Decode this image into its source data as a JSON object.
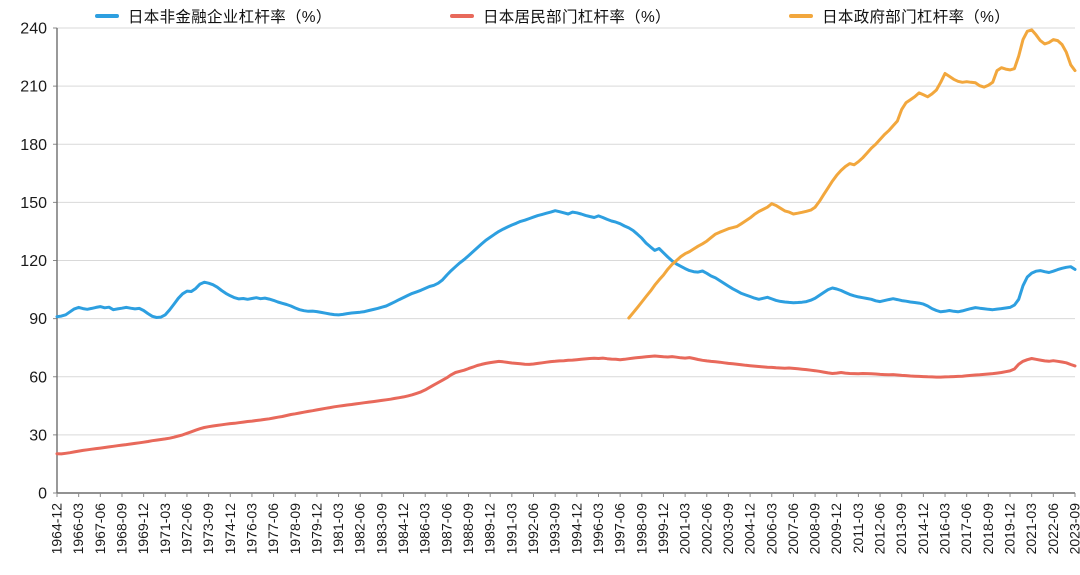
{
  "chart_data": {
    "type": "line",
    "title": "",
    "legend_position": "top",
    "grid": "horizontal",
    "ylim": [
      0,
      240
    ],
    "y_ticks": [
      0,
      30,
      60,
      90,
      120,
      150,
      180,
      210,
      240
    ],
    "x_total_points": 236,
    "x_label_every": 5,
    "x_tick_labels": [
      "1964-12",
      "1966-03",
      "1967-06",
      "1968-09",
      "1969-12",
      "1971-03",
      "1972-06",
      "1973-09",
      "1974-12",
      "1976-03",
      "1977-06",
      "1978-09",
      "1979-12",
      "1981-03",
      "1982-06",
      "1983-09",
      "1984-12",
      "1986-03",
      "1987-06",
      "1988-09",
      "1989-12",
      "1991-03",
      "1992-06",
      "1993-09",
      "1994-12",
      "1996-03",
      "1997-06",
      "1998-09",
      "1999-12",
      "2001-03",
      "2002-06",
      "2003-09",
      "2004-12",
      "2006-03",
      "2007-06",
      "2008-09",
      "2009-12",
      "2011-03",
      "2012-06",
      "2013-09",
      "2014-12",
      "2016-03",
      "2017-06",
      "2018-09",
      "2019-12",
      "2021-03",
      "2022-06",
      "2023-09"
    ],
    "colors": {
      "grid": "#d9d9d9",
      "axis": "#6e6e6e",
      "tick": "#8a8a8a",
      "text": "#1a1a1a"
    },
    "series": [
      {
        "name": "日本非金融企业杠杆率（%）",
        "color": "#2D9FE0",
        "start_index": 0,
        "values": [
          91.0,
          91.3,
          92.0,
          93.5,
          95.0,
          95.8,
          95.2,
          94.8,
          95.3,
          95.8,
          96.2,
          95.6,
          95.9,
          94.6,
          95.0,
          95.4,
          95.8,
          95.4,
          95.0,
          95.3,
          94.2,
          92.6,
          91.2,
          90.6,
          90.8,
          92.0,
          94.5,
          97.5,
          100.5,
          102.8,
          104.2,
          104.0,
          105.5,
          107.8,
          108.8,
          108.3,
          107.5,
          106.2,
          104.5,
          103.0,
          101.8,
          100.8,
          100.2,
          100.4,
          100.0,
          100.4,
          100.8,
          100.3,
          100.6,
          100.1,
          99.4,
          98.6,
          97.9,
          97.3,
          96.5,
          95.5,
          94.6,
          94.1,
          93.8,
          93.9,
          93.6,
          93.2,
          92.8,
          92.4,
          92.1,
          91.9,
          92.2,
          92.6,
          92.9,
          93.1,
          93.3,
          93.6,
          94.2,
          94.7,
          95.3,
          95.9,
          96.5,
          97.6,
          98.7,
          99.8,
          100.9,
          102.0,
          103.0,
          103.8,
          104.6,
          105.6,
          106.6,
          107.2,
          108.3,
          110.0,
          112.5,
          114.8,
          116.8,
          118.8,
          120.5,
          122.5,
          124.5,
          126.5,
          128.5,
          130.5,
          132.0,
          133.5,
          135.0,
          136.2,
          137.3,
          138.3,
          139.2,
          140.2,
          140.8,
          141.6,
          142.4,
          143.2,
          143.8,
          144.4,
          145.0,
          145.7,
          145.2,
          144.6,
          144.0,
          145.0,
          144.6,
          144.0,
          143.3,
          142.7,
          142.2,
          143.0,
          142.2,
          141.2,
          140.4,
          139.8,
          139.0,
          137.8,
          136.8,
          135.5,
          133.5,
          131.5,
          129.0,
          127.0,
          125.2,
          126.2,
          124.0,
          121.8,
          119.8,
          118.2,
          117.0,
          115.8,
          114.8,
          114.2,
          114.0,
          114.6,
          113.4,
          112.0,
          111.0,
          109.6,
          108.2,
          106.8,
          105.4,
          104.2,
          103.0,
          102.2,
          101.4,
          100.6,
          100.0,
          100.5,
          101.0,
          100.2,
          99.4,
          98.9,
          98.6,
          98.4,
          98.2,
          98.3,
          98.5,
          98.8,
          99.5,
          100.5,
          102.0,
          103.5,
          105.0,
          105.8,
          105.3,
          104.5,
          103.5,
          102.5,
          101.8,
          101.2,
          100.8,
          100.4,
          100.0,
          99.2,
          98.8,
          99.3,
          99.8,
          100.3,
          99.8,
          99.3,
          99.0,
          98.6,
          98.3,
          98.0,
          97.5,
          96.5,
          95.2,
          94.2,
          93.5,
          93.8,
          94.2,
          93.8,
          93.5,
          94.0,
          94.6,
          95.2,
          95.7,
          95.4,
          95.1,
          94.8,
          94.6,
          94.9,
          95.2,
          95.5,
          95.8,
          97.0,
          100.0,
          107.0,
          111.5,
          113.5,
          114.5,
          114.8,
          114.2,
          113.8,
          114.5,
          115.3,
          116.0,
          116.5,
          116.8,
          115.4
        ]
      },
      {
        "name": "日本居民部门杠杆率（%）",
        "color": "#E8695B",
        "start_index": 0,
        "values": [
          20.3,
          20.2,
          20.5,
          20.8,
          21.2,
          21.6,
          22.0,
          22.3,
          22.6,
          22.9,
          23.2,
          23.5,
          23.8,
          24.1,
          24.4,
          24.7,
          25.0,
          25.3,
          25.6,
          25.9,
          26.2,
          26.6,
          27.0,
          27.3,
          27.6,
          27.9,
          28.3,
          28.8,
          29.4,
          30.0,
          30.8,
          31.6,
          32.4,
          33.2,
          33.8,
          34.2,
          34.6,
          34.9,
          35.2,
          35.5,
          35.8,
          36.0,
          36.3,
          36.6,
          36.9,
          37.1,
          37.4,
          37.7,
          38.0,
          38.3,
          38.7,
          39.1,
          39.5,
          40.0,
          40.5,
          40.9,
          41.3,
          41.7,
          42.1,
          42.5,
          42.9,
          43.3,
          43.7,
          44.1,
          44.5,
          44.8,
          45.1,
          45.4,
          45.7,
          46.0,
          46.3,
          46.6,
          46.9,
          47.2,
          47.5,
          47.8,
          48.1,
          48.4,
          48.8,
          49.2,
          49.6,
          50.1,
          50.7,
          51.4,
          52.2,
          53.2,
          54.5,
          55.8,
          57.0,
          58.2,
          59.5,
          61.0,
          62.2,
          62.8,
          63.4,
          64.2,
          65.0,
          65.8,
          66.4,
          66.9,
          67.3,
          67.6,
          67.9,
          67.7,
          67.4,
          67.1,
          66.9,
          66.7,
          66.5,
          66.4,
          66.6,
          66.9,
          67.2,
          67.5,
          67.8,
          68.0,
          68.2,
          68.3,
          68.5,
          68.6,
          68.8,
          69.0,
          69.2,
          69.4,
          69.5,
          69.4,
          69.6,
          69.3,
          69.1,
          69.0,
          68.8,
          69.0,
          69.3,
          69.6,
          69.9,
          70.1,
          70.3,
          70.5,
          70.7,
          70.5,
          70.3,
          70.2,
          70.4,
          70.1,
          69.8,
          69.6,
          69.9,
          69.4,
          68.9,
          68.5,
          68.2,
          67.9,
          67.7,
          67.5,
          67.2,
          66.9,
          66.7,
          66.5,
          66.2,
          65.9,
          65.7,
          65.5,
          65.3,
          65.1,
          64.9,
          64.8,
          64.6,
          64.5,
          64.4,
          64.5,
          64.3,
          64.1,
          63.9,
          63.7,
          63.4,
          63.1,
          62.8,
          62.4,
          62.0,
          61.7,
          61.9,
          62.2,
          61.9,
          61.7,
          61.6,
          61.5,
          61.7,
          61.6,
          61.5,
          61.4,
          61.2,
          61.1,
          61.0,
          61.1,
          60.9,
          60.7,
          60.6,
          60.4,
          60.3,
          60.2,
          60.1,
          60.0,
          59.9,
          59.8,
          59.8,
          59.9,
          60.0,
          60.1,
          60.2,
          60.3,
          60.5,
          60.7,
          60.9,
          61.0,
          61.2,
          61.4,
          61.6,
          61.9,
          62.2,
          62.6,
          63.0,
          64.0,
          66.5,
          68.0,
          68.8,
          69.4,
          69.0,
          68.6,
          68.2,
          68.0,
          68.3,
          68.0,
          67.6,
          67.2,
          66.3,
          65.6
        ]
      },
      {
        "name": "日本政府部门杠杆率（%）",
        "color": "#F2A73D",
        "start_index": 132,
        "values": [
          90.3,
          93.0,
          95.8,
          98.6,
          101.4,
          104.2,
          107.3,
          110.0,
          112.5,
          115.5,
          118.0,
          120.0,
          122.0,
          123.5,
          124.6,
          126.0,
          127.4,
          128.6,
          130.0,
          131.8,
          133.6,
          134.6,
          135.5,
          136.4,
          137.0,
          137.6,
          139.0,
          140.5,
          142.0,
          143.8,
          145.3,
          146.4,
          147.5,
          149.3,
          148.4,
          147.0,
          145.6,
          145.0,
          144.0,
          144.4,
          144.9,
          145.4,
          146.0,
          147.5,
          150.5,
          154.0,
          157.5,
          161.0,
          164.0,
          166.5,
          168.5,
          170.0,
          169.4,
          171.0,
          173.0,
          175.5,
          178.0,
          180.0,
          182.5,
          185.0,
          187.0,
          189.5,
          192.0,
          198.0,
          201.5,
          203.0,
          204.5,
          206.5,
          205.5,
          204.5,
          206.0,
          208.0,
          212.0,
          216.5,
          215.0,
          213.5,
          212.5,
          212.0,
          212.3,
          212.0,
          211.7,
          210.2,
          209.5,
          210.5,
          212.0,
          218.0,
          219.5,
          218.8,
          218.4,
          219.0,
          225.5,
          234.0,
          238.3,
          239.0,
          236.5,
          233.5,
          231.8,
          232.5,
          234.0,
          233.5,
          231.5,
          227.5,
          221.0,
          218.0
        ]
      }
    ]
  }
}
